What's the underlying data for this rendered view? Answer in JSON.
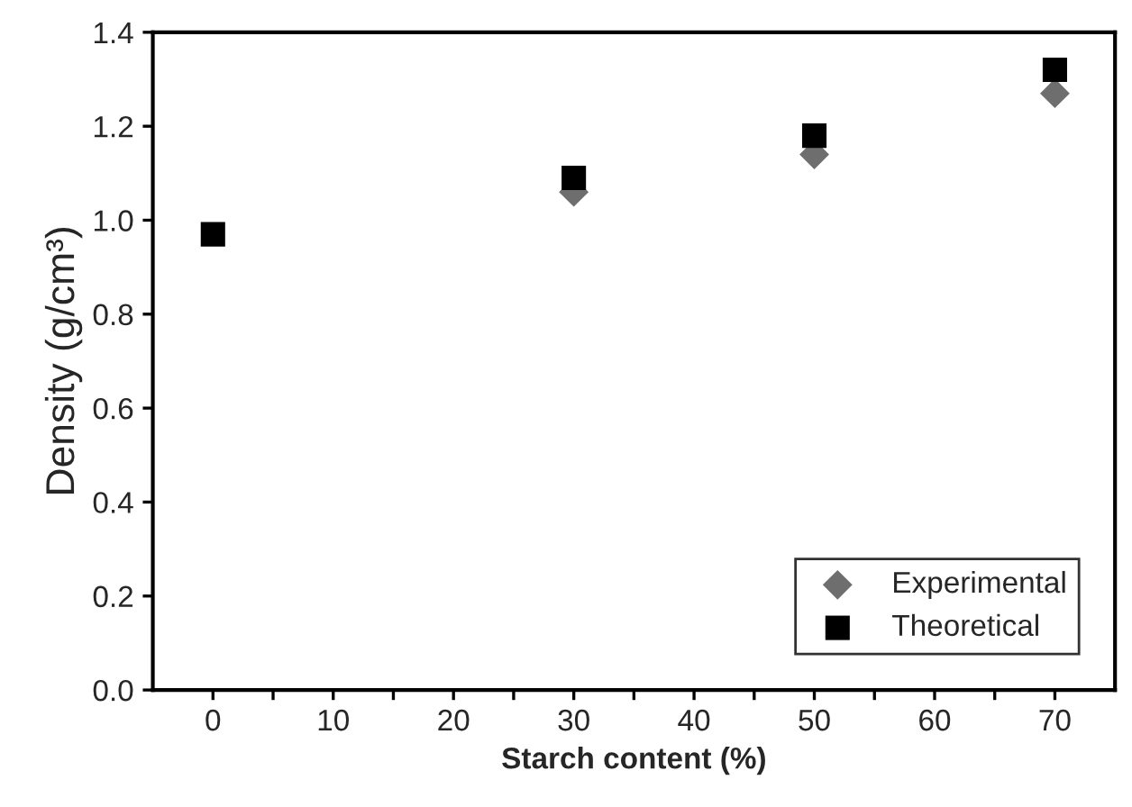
{
  "chart_data": {
    "type": "scatter",
    "xlabel": "Starch content (%)",
    "ylabel": "Density (g/cm³)",
    "x": [
      0,
      30,
      50,
      70
    ],
    "series": [
      {
        "name": "Experimental",
        "color": "#6e6e6e",
        "marker": "diamond",
        "values": [
          null,
          1.06,
          1.14,
          1.27
        ]
      },
      {
        "name": "Theoretical",
        "color": "#000000",
        "marker": "square",
        "values": [
          0.97,
          1.09,
          1.18,
          1.32
        ]
      }
    ],
    "xlim": [
      -5,
      75
    ],
    "ylim": [
      0.0,
      1.4
    ],
    "xticks": [
      0,
      {
        "value": 5,
        "label": null
      },
      10,
      {
        "value": 15,
        "label": null
      },
      20,
      {
        "value": 25,
        "label": null
      },
      30,
      {
        "value": 35,
        "label": null
      },
      40,
      {
        "value": 45,
        "label": null
      },
      50,
      {
        "value": 55,
        "label": null
      },
      60,
      {
        "value": 65,
        "label": null
      },
      70
    ],
    "yticks": [
      {
        "value": 0.0,
        "label": "0.0"
      },
      0.2,
      0.4,
      0.6,
      0.8,
      {
        "value": 1.0,
        "label": "1.0"
      },
      1.2,
      1.4
    ],
    "grid": false,
    "legend": "bottom right"
  }
}
